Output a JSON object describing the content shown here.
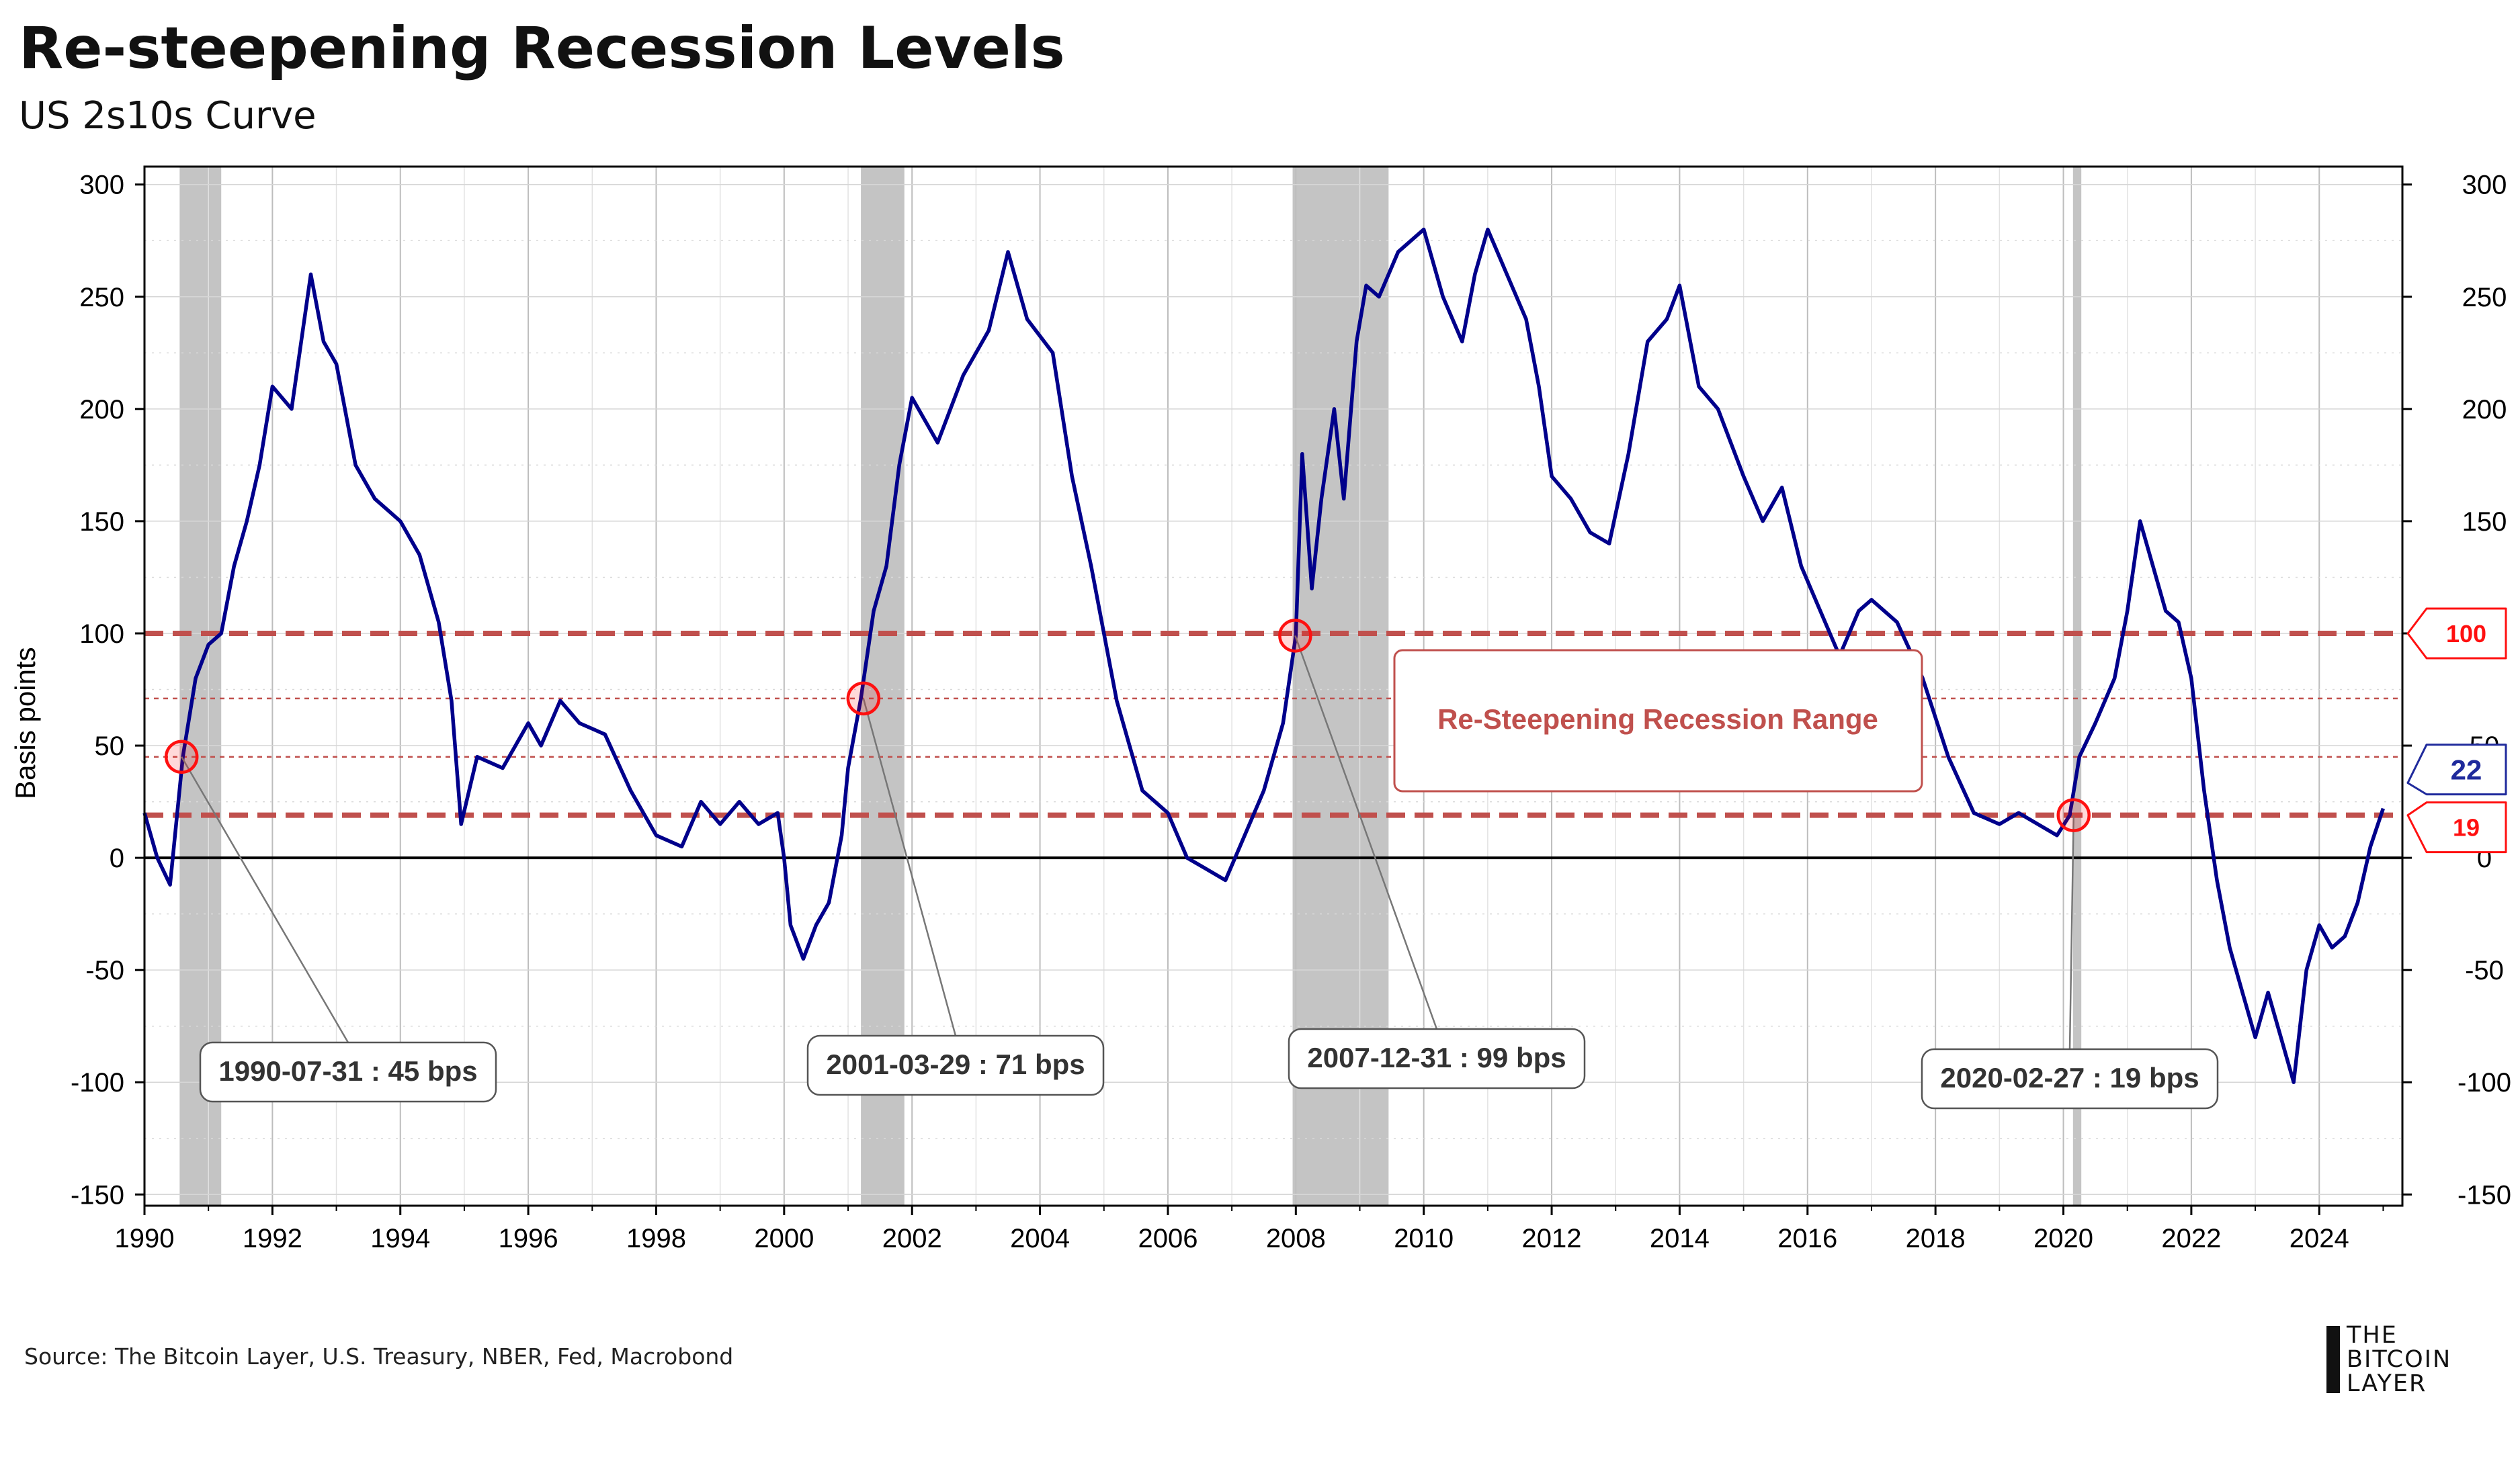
{
  "title": "Re-steepening Recession Levels",
  "subtitle": "US 2s10s Curve",
  "source": "Source: The Bitcoin Layer, U.S. Treasury, NBER, Fed, Macrobond",
  "logo": {
    "line1": "THE",
    "line2": "BITCOIN",
    "line3": "LAYER"
  },
  "chart_data": {
    "type": "line",
    "title": "Re-steepening Recession Levels",
    "subtitle": "US 2s10s Curve",
    "xlabel": "",
    "ylabel": "Basis points",
    "xlim": [
      1990,
      2025.3
    ],
    "ylim": [
      -155,
      308
    ],
    "x_ticks": [
      1990,
      1992,
      1994,
      1996,
      1998,
      2000,
      2002,
      2004,
      2006,
      2008,
      2010,
      2012,
      2014,
      2016,
      2018,
      2020,
      2022,
      2024
    ],
    "y_ticks": [
      300,
      250,
      200,
      150,
      100,
      50,
      0,
      -50,
      -100,
      -150
    ],
    "y_ticks_right": [
      300,
      250,
      200,
      150,
      100,
      50,
      0,
      -50,
      -100,
      -150
    ],
    "grid": true,
    "line_color": "#00008b",
    "series": [
      {
        "name": "",
        "x": [
          1990.0,
          1990.2,
          1990.4,
          1990.6,
          1990.8,
          1991.0,
          1991.2,
          1991.4,
          1991.6,
          1991.8,
          1992.0,
          1992.3,
          1992.6,
          1992.8,
          1993.0,
          1993.3,
          1993.6,
          1994.0,
          1994.3,
          1994.6,
          1994.8,
          1994.95,
          1995.2,
          1995.6,
          1996.0,
          1996.2,
          1996.5,
          1996.8,
          1997.2,
          1997.6,
          1998.0,
          1998.4,
          1998.7,
          1999.0,
          1999.3,
          1999.6,
          1999.9,
          2000.0,
          2000.1,
          2000.3,
          2000.5,
          2000.7,
          2000.9,
          2001.0,
          2001.2,
          2001.4,
          2001.6,
          2001.8,
          2002.0,
          2002.4,
          2002.8,
          2003.2,
          2003.5,
          2003.8,
          2004.2,
          2004.5,
          2004.8,
          2005.2,
          2005.6,
          2006.0,
          2006.3,
          2006.6,
          2006.9,
          2007.2,
          2007.5,
          2007.8,
          2008.0,
          2008.1,
          2008.25,
          2008.4,
          2008.6,
          2008.75,
          2008.95,
          2009.1,
          2009.3,
          2009.6,
          2010.0,
          2010.3,
          2010.6,
          2010.8,
          2011.0,
          2011.3,
          2011.6,
          2011.8,
          2012.0,
          2012.3,
          2012.6,
          2012.9,
          2013.2,
          2013.5,
          2013.8,
          2014.0,
          2014.3,
          2014.6,
          2015.0,
          2015.3,
          2015.6,
          2015.9,
          2016.2,
          2016.5,
          2016.8,
          2017.0,
          2017.4,
          2017.8,
          2018.2,
          2018.6,
          2019.0,
          2019.3,
          2019.6,
          2019.9,
          2020.1,
          2020.25,
          2020.5,
          2020.8,
          2021.0,
          2021.2,
          2021.4,
          2021.6,
          2021.8,
          2022.0,
          2022.2,
          2022.4,
          2022.6,
          2022.8,
          2023.0,
          2023.2,
          2023.4,
          2023.6,
          2023.8,
          2024.0,
          2024.2,
          2024.4,
          2024.6,
          2024.8,
          2025.0
        ],
        "values": [
          20,
          0,
          -12,
          45,
          80,
          95,
          100,
          130,
          150,
          175,
          210,
          200,
          260,
          230,
          220,
          175,
          160,
          150,
          135,
          105,
          70,
          15,
          45,
          40,
          60,
          50,
          70,
          60,
          55,
          30,
          10,
          5,
          25,
          15,
          25,
          15,
          20,
          0,
          -30,
          -45,
          -30,
          -20,
          10,
          40,
          71,
          110,
          130,
          175,
          205,
          185,
          215,
          235,
          270,
          240,
          225,
          170,
          130,
          70,
          30,
          20,
          0,
          -5,
          -10,
          10,
          30,
          60,
          99,
          180,
          120,
          160,
          200,
          160,
          230,
          255,
          250,
          270,
          280,
          250,
          230,
          260,
          280,
          260,
          240,
          210,
          170,
          160,
          145,
          140,
          180,
          230,
          240,
          255,
          210,
          200,
          170,
          150,
          165,
          130,
          110,
          90,
          110,
          115,
          105,
          80,
          45,
          20,
          15,
          20,
          15,
          10,
          19,
          45,
          60,
          80,
          110,
          150,
          130,
          110,
          105,
          80,
          30,
          -10,
          -40,
          -60,
          -80,
          -60,
          -80,
          -100,
          -50,
          -30,
          -40,
          -35,
          -20,
          5,
          22
        ]
      }
    ],
    "recessions": [
      {
        "start": 1990.55,
        "end": 1991.2
      },
      {
        "start": 2001.2,
        "end": 2001.88
      },
      {
        "start": 2007.95,
        "end": 2009.45
      },
      {
        "start": 2020.15,
        "end": 2020.28
      }
    ],
    "reference_lines": [
      {
        "y": 100,
        "style": "thick-dashed",
        "label": "100"
      },
      {
        "y": 71,
        "style": "thin-dashed"
      },
      {
        "y": 45,
        "style": "thin-dashed"
      },
      {
        "y": 19,
        "style": "thick-dashed",
        "label": "19"
      }
    ],
    "last_value": {
      "value": 22,
      "label": "22"
    },
    "range_label": "Re-Steepening Recession Range",
    "annotations": [
      {
        "x": 1990.58,
        "y": 45,
        "label": "1990-07-31 : 45 bps"
      },
      {
        "x": 2001.24,
        "y": 71,
        "label": "2001-03-29 : 71 bps"
      },
      {
        "x": 2007.99,
        "y": 99,
        "label": "2007-12-31 : 99 bps"
      },
      {
        "x": 2020.16,
        "y": 19,
        "label": "2020-02-27 : 19 bps"
      }
    ]
  }
}
